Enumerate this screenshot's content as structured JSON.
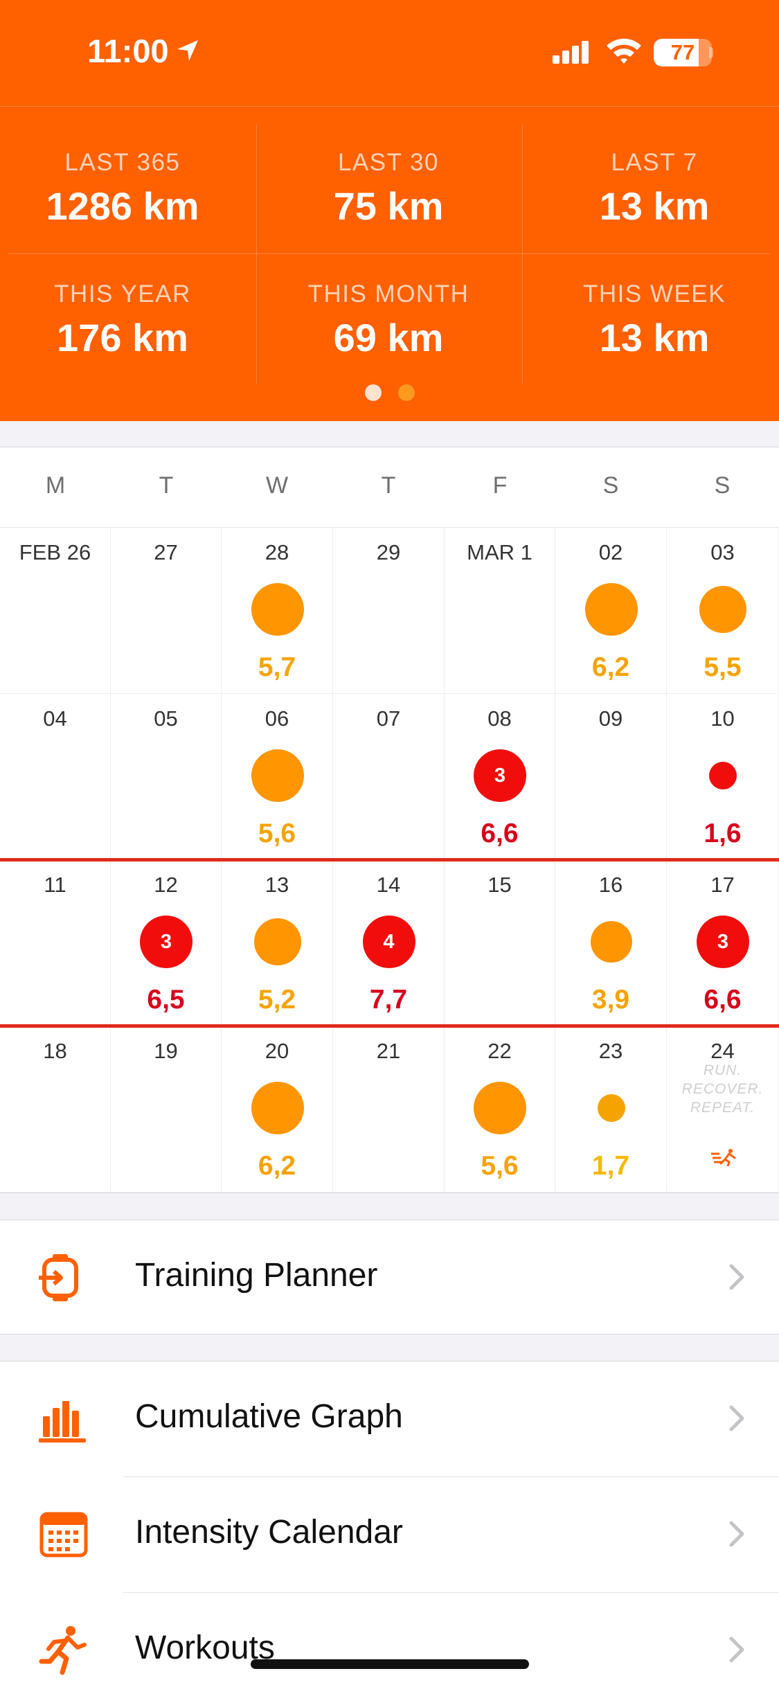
{
  "status_bar": {
    "time": "11:00",
    "battery": "77",
    "battery_level": 0.77
  },
  "colors": {
    "brand": "#FF6000",
    "orange_dot": "#FF9500",
    "red_dot": "#F20D0D",
    "week_line": "#E22A19",
    "amber": "#F5A300"
  },
  "stats": [
    {
      "label": "LAST 365",
      "value": "1286 km"
    },
    {
      "label": "LAST 30",
      "value": "75 km"
    },
    {
      "label": "LAST 7",
      "value": "13 km"
    },
    {
      "label": "THIS YEAR",
      "value": "176 km"
    },
    {
      "label": "THIS MONTH",
      "value": "69 km"
    },
    {
      "label": "THIS WEEK",
      "value": "13 km"
    }
  ],
  "pager": {
    "pages": 2,
    "active": 0
  },
  "calendar": {
    "weekdays": [
      "M",
      "T",
      "W",
      "T",
      "F",
      "S",
      "S"
    ],
    "weeks": [
      [
        {
          "label": "FEB 26"
        },
        {
          "label": "27"
        },
        {
          "label": "28",
          "distance": "5,7",
          "dot": "orange",
          "size": "large"
        },
        {
          "label": "29"
        },
        {
          "label": "MAR 1"
        },
        {
          "label": "02",
          "distance": "6,2",
          "dot": "orange",
          "size": "large"
        },
        {
          "label": "03",
          "distance": "5,5",
          "dot": "orange",
          "size": "medium"
        }
      ],
      [
        {
          "label": "04"
        },
        {
          "label": "05"
        },
        {
          "label": "06",
          "distance": "5,6",
          "dot": "orange",
          "size": "large"
        },
        {
          "label": "07"
        },
        {
          "label": "08",
          "distance": "6,6",
          "dot": "red",
          "size": "large",
          "count": "3"
        },
        {
          "label": "09"
        },
        {
          "label": "10",
          "distance": "1,6",
          "dot": "red",
          "size": "small"
        }
      ],
      [
        {
          "label": "11"
        },
        {
          "label": "12",
          "distance": "6,5",
          "dot": "red",
          "size": "large",
          "count": "3"
        },
        {
          "label": "13",
          "distance": "5,2",
          "dot": "orange",
          "size": "medium"
        },
        {
          "label": "14",
          "distance": "7,7",
          "dot": "red",
          "size": "large",
          "count": "4"
        },
        {
          "label": "15"
        },
        {
          "label": "16",
          "distance": "3,9",
          "dot": "orange",
          "size": "medium-small"
        },
        {
          "label": "17",
          "distance": "6,6",
          "dot": "red",
          "size": "large",
          "count": "3"
        }
      ],
      [
        {
          "label": "18"
        },
        {
          "label": "19"
        },
        {
          "label": "20",
          "distance": "6,2",
          "dot": "orange",
          "size": "large"
        },
        {
          "label": "21"
        },
        {
          "label": "22",
          "distance": "5,6",
          "dot": "orange",
          "size": "large"
        },
        {
          "label": "23",
          "distance": "1,7",
          "dot": "amber",
          "size": "small"
        },
        {
          "label": "24"
        }
      ]
    ],
    "current_week": 2,
    "slogan": [
      "RUN.",
      "RECOVER.",
      "REPEAT."
    ]
  },
  "menu": [
    {
      "label": "Training Planner",
      "icon": "watch-planner-icon"
    },
    {
      "label": "Cumulative Graph",
      "icon": "bar-chart-icon"
    },
    {
      "label": "Intensity Calendar",
      "icon": "calendar-icon"
    },
    {
      "label": "Workouts",
      "icon": "runner-icon"
    }
  ]
}
